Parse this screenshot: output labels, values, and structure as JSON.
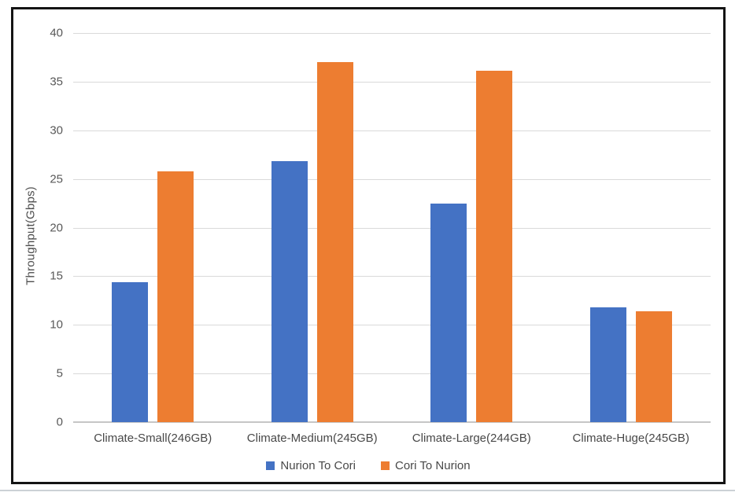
{
  "chart_data": {
    "type": "bar",
    "title": "",
    "ylabel": "Throughput(Gbps)",
    "xlabel": "",
    "ylim": [
      0,
      40
    ],
    "yticks": [
      0,
      5,
      10,
      15,
      20,
      25,
      30,
      35,
      40
    ],
    "grid": true,
    "legend_position": "bottom-center",
    "categories": [
      "Climate-Small(246GB)",
      "Climate-Medium(245GB)",
      "Climate-Large(244GB)",
      "Climate-Huge(245GB)"
    ],
    "series": [
      {
        "name": "Nurion To Cori",
        "color": "#4472C4",
        "values": [
          14.4,
          26.8,
          22.5,
          11.8
        ]
      },
      {
        "name": "Cori To Nurion",
        "color": "#ED7D31",
        "values": [
          25.8,
          37.0,
          36.1,
          11.4
        ]
      }
    ]
  },
  "style": {
    "frame_border_color": "#141414",
    "gridline_color": "#D9D9D9",
    "axis_line_color": "#C6C6C6",
    "tick_text_color": "#595959",
    "label_text_color": "#484848"
  }
}
